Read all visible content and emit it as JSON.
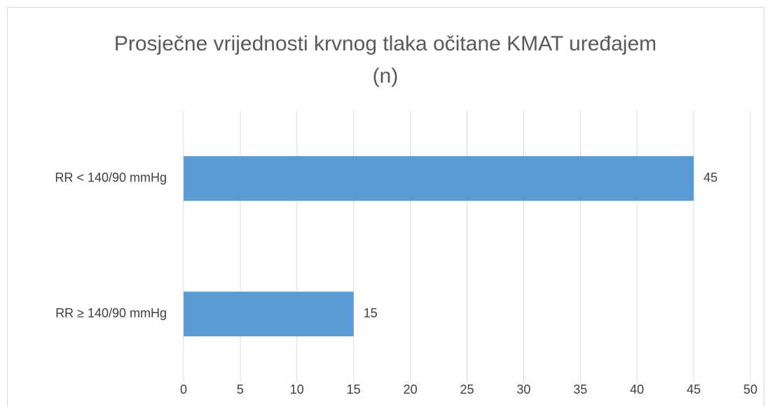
{
  "chart_data": {
    "type": "barh",
    "title": "Prosječne vrijednosti krvnog tlaka očitane KMAT uređajem (n)",
    "categories": [
      "RR < 140/90 mmHg",
      "RR ≥ 140/90 mmHg"
    ],
    "values": [
      45,
      15
    ],
    "color": "#5b9bd5",
    "xlim": [
      0,
      50
    ],
    "xticks": [
      0,
      5,
      10,
      15,
      20,
      25,
      30,
      35,
      40,
      45,
      50
    ],
    "grid": true
  }
}
